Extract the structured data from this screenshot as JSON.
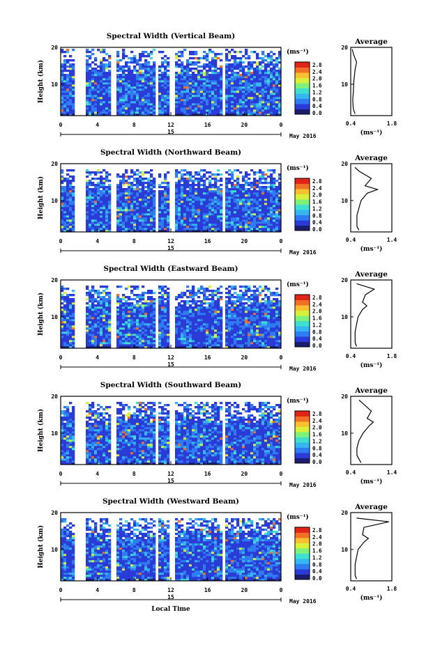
{
  "colorbar": {
    "unit": "(ms⁻¹)",
    "ticks": [
      "2.8",
      "2.4",
      "2.0",
      "1.6",
      "1.2",
      "0.8",
      "0.4",
      "0.0"
    ],
    "colors": [
      "#1c1c6e",
      "#2a3bd6",
      "#2f7bf2",
      "#36b6f0",
      "#3fe0d0",
      "#7ff07a",
      "#d8f03a",
      "#f8c030",
      "#f07028",
      "#e02418"
    ]
  },
  "shared": {
    "x_ticks": [
      "0",
      "4",
      "8",
      "12",
      "16",
      "20",
      "0"
    ],
    "y_ticks": [
      "20",
      "10"
    ],
    "ylabel": "Height (km)",
    "date_day": "15",
    "month_year": "May 2016",
    "xlabel": "Local Time",
    "avg_title": "Average",
    "avg_unit": "(ms⁻¹)",
    "avg_yticks": [
      "20",
      "10"
    ]
  },
  "chart_data": [
    {
      "type": "heatmap",
      "title": "Spectral Width (Vertical Beam)",
      "xlabel": "Local Time",
      "ylabel": "Height (km)",
      "x_range_hours": [
        0,
        24
      ],
      "y_range_km": [
        1.5,
        20
      ],
      "value_range": [
        0.0,
        3.0
      ],
      "data_top_km": 20,
      "data_gaps_hours": [
        [
          1.4,
          2.6
        ],
        [
          5.3,
          5.8
        ],
        [
          10.2,
          10.6
        ],
        [
          11.7,
          12.3
        ],
        [
          17.4,
          17.8
        ]
      ],
      "average_profile": {
        "xticks": [
          "0.4",
          "1.8"
        ],
        "xlim": [
          0.4,
          1.8
        ],
        "heights_km": [
          2,
          3,
          4,
          6,
          8,
          10,
          12,
          14,
          16,
          18,
          19.5
        ],
        "values": [
          0.55,
          0.5,
          0.48,
          0.47,
          0.49,
          0.5,
          0.52,
          0.55,
          0.6,
          0.5,
          0.45
        ]
      }
    },
    {
      "type": "heatmap",
      "title": "Spectral Width (Northward Beam)",
      "xlabel": "Local Time",
      "ylabel": "Height (km)",
      "x_range_hours": [
        0,
        24
      ],
      "y_range_km": [
        1.5,
        20
      ],
      "value_range": [
        0.0,
        3.0
      ],
      "data_top_km": 18.5,
      "data_gaps_hours": [
        [
          1.4,
          2.6
        ],
        [
          5.3,
          5.8
        ],
        [
          10.2,
          10.6
        ],
        [
          11.7,
          12.3
        ],
        [
          17.4,
          17.8
        ]
      ],
      "average_profile": {
        "xticks": [
          "0.4",
          "1.4"
        ],
        "xlim": [
          0.4,
          1.4
        ],
        "heights_km": [
          2,
          3,
          4,
          6,
          8,
          10,
          12,
          13,
          14,
          16,
          18,
          19
        ],
        "values": [
          0.6,
          0.55,
          0.55,
          0.55,
          0.6,
          0.65,
          0.8,
          1.05,
          0.75,
          0.9,
          0.6,
          0.5
        ]
      }
    },
    {
      "type": "heatmap",
      "title": "Spectral Width (Eastward Beam)",
      "xlabel": "Local Time",
      "ylabel": "Height (km)",
      "x_range_hours": [
        0,
        24
      ],
      "y_range_km": [
        1.5,
        20
      ],
      "value_range": [
        0.0,
        3.0
      ],
      "data_top_km": 19,
      "data_gaps_hours": [
        [
          1.4,
          2.6
        ],
        [
          5.3,
          5.8
        ],
        [
          10.2,
          10.6
        ],
        [
          11.7,
          12.3
        ],
        [
          17.4,
          17.8
        ]
      ],
      "average_profile": {
        "xticks": [
          "0.4",
          "1.8"
        ],
        "xlim": [
          0.4,
          1.8
        ],
        "heights_km": [
          2,
          3,
          4,
          6,
          8,
          10,
          12,
          13,
          14,
          16,
          17.5,
          19
        ],
        "values": [
          0.6,
          0.55,
          0.55,
          0.55,
          0.6,
          0.65,
          0.8,
          0.95,
          0.8,
          0.9,
          1.2,
          0.6
        ]
      }
    },
    {
      "type": "heatmap",
      "title": "Spectral Width (Southward Beam)",
      "xlabel": "Local Time",
      "ylabel": "Height (km)",
      "x_range_hours": [
        0,
        24
      ],
      "y_range_km": [
        1.5,
        20
      ],
      "value_range": [
        0.0,
        3.0
      ],
      "data_top_km": 18.5,
      "data_gaps_hours": [
        [
          1.4,
          2.6
        ],
        [
          5.3,
          5.8
        ],
        [
          10.2,
          10.6
        ],
        [
          11.7,
          12.3
        ],
        [
          17.4,
          17.8
        ]
      ],
      "average_profile": {
        "xticks": [
          "0.4",
          "1.4"
        ],
        "xlim": [
          0.4,
          1.4
        ],
        "heights_km": [
          2,
          3,
          4,
          6,
          8,
          10,
          12,
          13,
          14,
          16,
          18,
          19
        ],
        "values": [
          0.65,
          0.6,
          0.55,
          0.55,
          0.6,
          0.7,
          0.85,
          0.95,
          0.8,
          0.9,
          0.7,
          0.6
        ]
      }
    },
    {
      "type": "heatmap",
      "title": "Spectral Width (Westward Beam)",
      "xlabel": "Local Time",
      "ylabel": "Height (km)",
      "x_range_hours": [
        0,
        24
      ],
      "y_range_km": [
        1.5,
        20
      ],
      "value_range": [
        0.0,
        3.0
      ],
      "data_top_km": 18.5,
      "data_gaps_hours": [
        [
          1.4,
          2.6
        ],
        [
          5.3,
          5.8
        ],
        [
          10.2,
          10.6
        ],
        [
          11.7,
          12.3
        ],
        [
          17.4,
          17.8
        ]
      ],
      "average_profile": {
        "xticks": [
          "0.4",
          "1.8"
        ],
        "xlim": [
          0.4,
          1.8
        ],
        "heights_km": [
          2,
          3,
          4,
          6,
          8,
          10,
          12,
          13,
          14,
          16,
          17.5,
          18.5
        ],
        "values": [
          0.6,
          0.55,
          0.55,
          0.55,
          0.6,
          0.65,
          0.85,
          1.0,
          0.8,
          0.85,
          1.7,
          0.6
        ]
      }
    }
  ]
}
